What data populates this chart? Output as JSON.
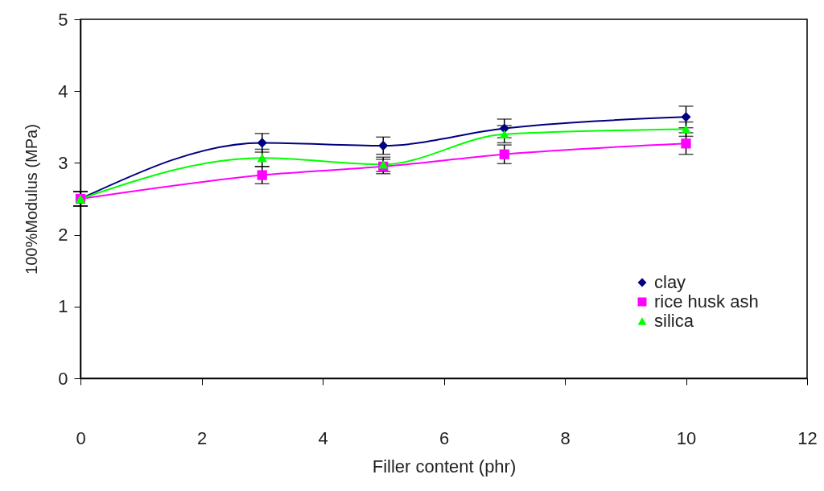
{
  "chart_data": {
    "type": "line",
    "xlabel": "Filler content (phr)",
    "ylabel": "100%Modulus (MPa)",
    "x": [
      0,
      3,
      5,
      7,
      10
    ],
    "series": [
      {
        "name": "clay",
        "color": "#000080",
        "marker": "diamond",
        "values": [
          2.5,
          3.28,
          3.24,
          3.48,
          3.64
        ],
        "errors": [
          0.1,
          0.13,
          0.12,
          0.13,
          0.15
        ]
      },
      {
        "name": "rice husk ash",
        "color": "#ff00ff",
        "marker": "square",
        "values": [
          2.5,
          2.83,
          2.95,
          3.12,
          3.27
        ],
        "errors": [
          0.1,
          0.12,
          0.1,
          0.13,
          0.15
        ]
      },
      {
        "name": "silica",
        "color": "#00ff00",
        "marker": "triangle",
        "values": [
          2.5,
          3.07,
          2.98,
          3.4,
          3.47
        ],
        "errors": [
          0.1,
          0.12,
          0.1,
          0.12,
          0.1
        ]
      }
    ],
    "xlim": [
      0,
      12
    ],
    "xticks": [
      0,
      2,
      4,
      6,
      8,
      10,
      12
    ],
    "ylim": [
      0,
      5
    ],
    "yticks": [
      0,
      1,
      2,
      3,
      4,
      5
    ],
    "grid": false,
    "legend": "bottom right",
    "line_style": "solid"
  }
}
